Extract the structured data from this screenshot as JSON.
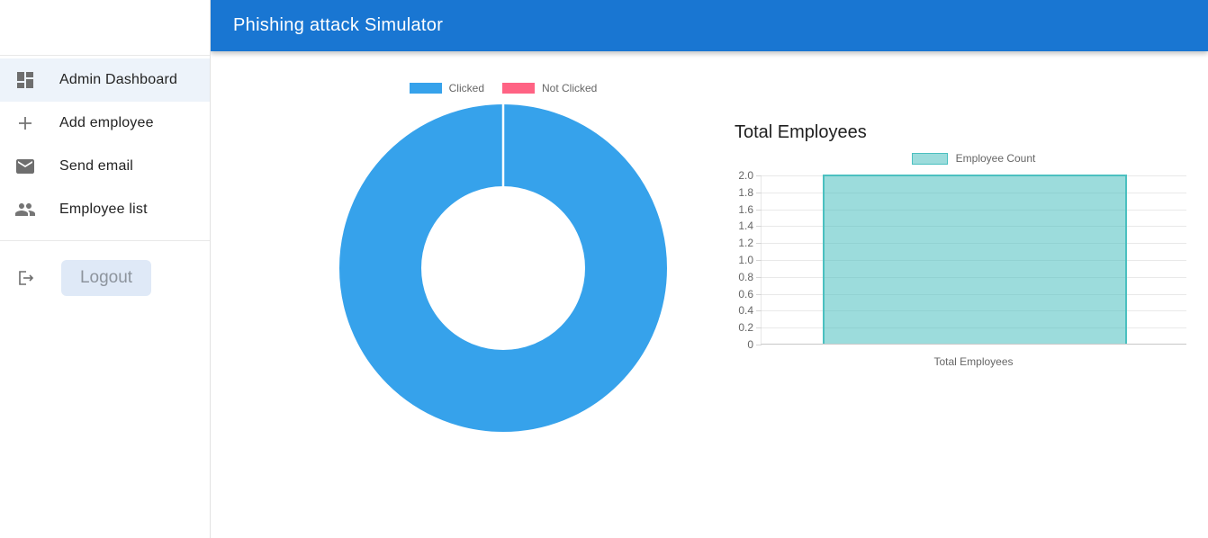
{
  "app": {
    "title": "Phishing attack Simulator"
  },
  "colors": {
    "header_bg": "#1976d2",
    "clicked_blue": "#36A2EB",
    "not_clicked_pink": "#FF6384",
    "teal_border": "#4BC0C0",
    "teal_fill": "rgba(75,192,192,0.55)",
    "active_item_bg": "#edf3fa",
    "logout_button_bg": "#dfe9f7"
  },
  "sidebar": {
    "items": [
      {
        "label": "Admin Dashboard",
        "icon": "dashboard-icon",
        "active": true
      },
      {
        "label": "Add employee",
        "icon": "add-icon",
        "active": false
      },
      {
        "label": "Send email",
        "icon": "email-icon",
        "active": false
      },
      {
        "label": "Employee list",
        "icon": "people-icon",
        "active": false
      }
    ],
    "logout_label": "Logout"
  },
  "chart_data": [
    {
      "type": "pie",
      "variant": "doughnut",
      "labels": [
        "Clicked",
        "Not Clicked"
      ],
      "values": [
        2,
        0
      ],
      "colors": [
        "#36A2EB",
        "#FF6384"
      ],
      "cutout_percent": 50,
      "legend_position": "top",
      "segment_border_color": "#ffffff"
    },
    {
      "type": "bar",
      "title": "Total Employees",
      "categories": [
        "Total Employees"
      ],
      "series": [
        {
          "name": "Employee Count",
          "values": [
            2
          ]
        }
      ],
      "ylim": [
        0,
        2
      ],
      "yticks": [
        "2.0",
        "1.8",
        "1.6",
        "1.4",
        "1.2",
        "1.0",
        "0.8",
        "0.6",
        "0.4",
        "0.2",
        "0"
      ],
      "bar_fill": "rgba(75,192,192,0.55)",
      "bar_border": "#4BC0C0",
      "grid": true,
      "legend_position": "top",
      "xlabel": "Total Employees",
      "ylabel": ""
    }
  ]
}
